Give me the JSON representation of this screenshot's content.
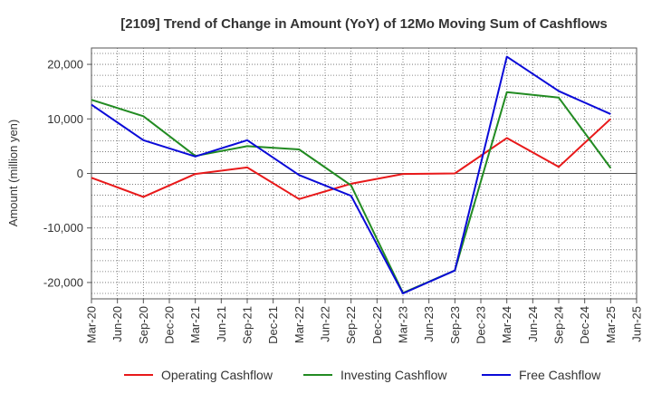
{
  "chart_data": {
    "type": "line",
    "title": "[2109]  Trend of Change in Amount (YoY) of 12Mo Moving Sum of Cashflows",
    "xlabel": "",
    "ylabel": "Amount (million yen)",
    "ylim": [
      -23000,
      23000
    ],
    "yticks": [
      20000,
      10000,
      0,
      -10000,
      -20000
    ],
    "ytick_labels": [
      "20,000",
      "10,000",
      "0",
      "-10,000",
      "-20,000"
    ],
    "categories": [
      "Mar-20",
      "Jun-20",
      "Sep-20",
      "Dec-20",
      "Mar-21",
      "Jun-21",
      "Sep-21",
      "Dec-21",
      "Mar-22",
      "Jun-22",
      "Sep-22",
      "Dec-22",
      "Mar-23",
      "Jun-23",
      "Sep-23",
      "Dec-23",
      "Mar-24",
      "Jun-24",
      "Sep-24",
      "Dec-24",
      "Mar-25",
      "Jun-25"
    ],
    "grid": true,
    "legend_position": "bottom",
    "series": [
      {
        "name": "Operating Cashflow",
        "color": "#e8191a",
        "points": [
          {
            "x": "Mar-20",
            "y": -800
          },
          {
            "x": "Sep-20",
            "y": -4300
          },
          {
            "x": "Mar-21",
            "y": -100
          },
          {
            "x": "Sep-21",
            "y": 1100
          },
          {
            "x": "Mar-22",
            "y": -4700
          },
          {
            "x": "Sep-22",
            "y": -1900
          },
          {
            "x": "Mar-23",
            "y": -100
          },
          {
            "x": "Sep-23",
            "y": 0
          },
          {
            "x": "Mar-24",
            "y": 6500
          },
          {
            "x": "Sep-24",
            "y": 1200
          },
          {
            "x": "Mar-25",
            "y": 10000
          }
        ]
      },
      {
        "name": "Investing Cashflow",
        "color": "#228b22",
        "points": [
          {
            "x": "Mar-20",
            "y": 13500
          },
          {
            "x": "Sep-20",
            "y": 10500
          },
          {
            "x": "Mar-21",
            "y": 3200
          },
          {
            "x": "Sep-21",
            "y": 5000
          },
          {
            "x": "Mar-22",
            "y": 4400
          },
          {
            "x": "Sep-22",
            "y": -2200
          },
          {
            "x": "Mar-23",
            "y": -21900
          },
          {
            "x": "Sep-23",
            "y": -17800
          },
          {
            "x": "Mar-24",
            "y": 14900
          },
          {
            "x": "Sep-24",
            "y": 13900
          },
          {
            "x": "Mar-25",
            "y": 1000
          }
        ]
      },
      {
        "name": "Free Cashflow",
        "color": "#0a0ad8",
        "points": [
          {
            "x": "Mar-20",
            "y": 12600
          },
          {
            "x": "Sep-20",
            "y": 6100
          },
          {
            "x": "Mar-21",
            "y": 3100
          },
          {
            "x": "Sep-21",
            "y": 6100
          },
          {
            "x": "Mar-22",
            "y": -300
          },
          {
            "x": "Sep-22",
            "y": -4100
          },
          {
            "x": "Mar-23",
            "y": -22000
          },
          {
            "x": "Sep-23",
            "y": -17800
          },
          {
            "x": "Mar-24",
            "y": 21400
          },
          {
            "x": "Sep-24",
            "y": 15100
          },
          {
            "x": "Mar-25",
            "y": 10900
          }
        ]
      }
    ]
  }
}
